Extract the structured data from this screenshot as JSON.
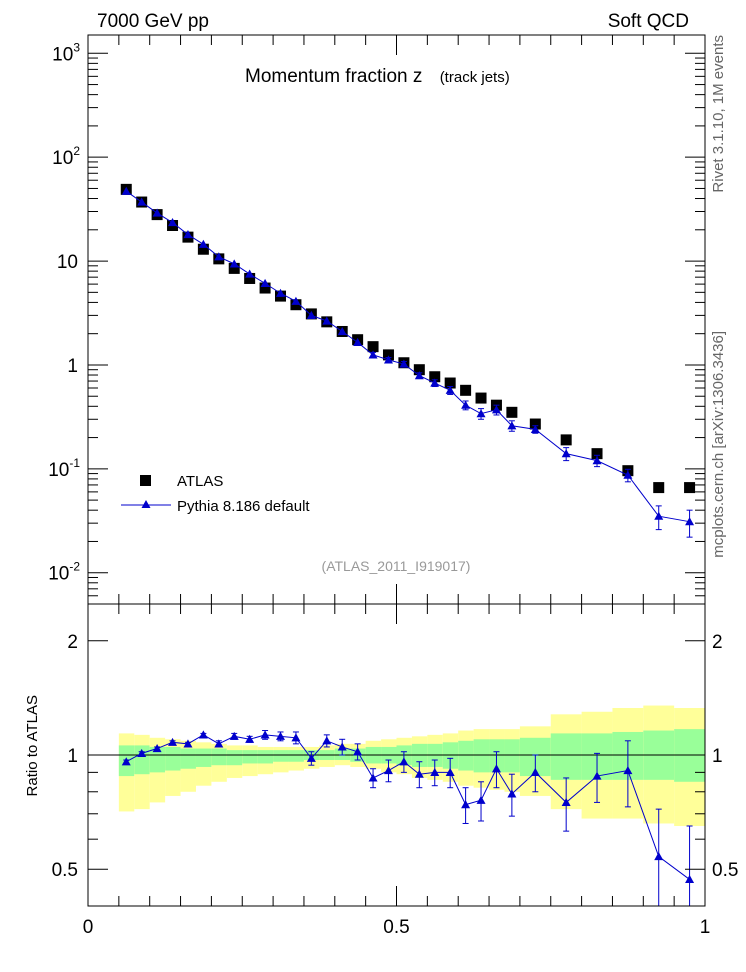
{
  "header": {
    "energy_label": "7000 GeV pp",
    "process_label": "Soft QCD"
  },
  "plot": {
    "title": "Momentum fraction z",
    "subtitle": "(track jets)",
    "analysis_tag": "(ATLAS_2011_I919017)",
    "side_label_top": "Rivet 3.1.10,  1M events",
    "side_label_bottom": "mcplots.cern.ch [arXiv:1306.3436]",
    "ratio_ylabel": "Ratio to ATLAS"
  },
  "colors": {
    "data": "#000000",
    "mc": "#0000cc",
    "band_inner": "#99ff99",
    "band_outer": "#ffff99"
  },
  "chart_data": [
    {
      "type": "scatter",
      "name": "main",
      "x_scale": "linear",
      "y_scale": "log",
      "xlim": [
        0,
        1
      ],
      "ylim": [
        0.005,
        1500
      ],
      "y_tick_labels": [
        "10^-2",
        "10^-1",
        "1",
        "10",
        "10^2",
        "10^3"
      ],
      "legend": [
        "ATLAS",
        "Pythia 8.186 default"
      ],
      "legend_placement": "bottom-left",
      "series": [
        {
          "name": "ATLAS",
          "marker": "square",
          "x": [
            0.062,
            0.087,
            0.112,
            0.137,
            0.162,
            0.187,
            0.212,
            0.237,
            0.262,
            0.287,
            0.312,
            0.337,
            0.362,
            0.387,
            0.412,
            0.437,
            0.462,
            0.487,
            0.512,
            0.537,
            0.562,
            0.587,
            0.612,
            0.637,
            0.662,
            0.687,
            0.725,
            0.775,
            0.825,
            0.875,
            0.925,
            0.975
          ],
          "y": [
            49,
            37,
            28,
            22,
            17,
            13,
            10.5,
            8.5,
            6.8,
            5.5,
            4.6,
            3.8,
            3.1,
            2.6,
            2.1,
            1.75,
            1.5,
            1.25,
            1.05,
            0.9,
            0.77,
            0.67,
            0.57,
            0.48,
            0.41,
            0.35,
            0.27,
            0.19,
            0.14,
            0.096,
            0.066,
            0.066
          ]
        },
        {
          "name": "Pythia 8.186 default",
          "marker": "triangle",
          "x": [
            0.062,
            0.087,
            0.112,
            0.137,
            0.162,
            0.187,
            0.212,
            0.237,
            0.262,
            0.287,
            0.312,
            0.337,
            0.362,
            0.387,
            0.412,
            0.437,
            0.462,
            0.487,
            0.512,
            0.537,
            0.562,
            0.587,
            0.612,
            0.637,
            0.662,
            0.687,
            0.725,
            0.775,
            0.825,
            0.875,
            0.925,
            0.975
          ],
          "y": [
            47,
            37,
            29,
            23.5,
            18,
            14.5,
            11,
            9.4,
            7.5,
            6.1,
            4.9,
            4.1,
            3.0,
            2.65,
            2.1,
            1.65,
            1.25,
            1.12,
            1.02,
            0.79,
            0.67,
            0.57,
            0.41,
            0.34,
            0.37,
            0.26,
            0.24,
            0.14,
            0.12,
            0.087,
            0.035,
            0.031
          ],
          "y_err": [
            0,
            0,
            0,
            0,
            0,
            0,
            0,
            0,
            0,
            0,
            0,
            0,
            0,
            0,
            0,
            0,
            0.07,
            0.06,
            0.06,
            0.05,
            0.05,
            0.05,
            0.04,
            0.04,
            0.04,
            0.03,
            0.02,
            0.02,
            0.015,
            0.012,
            0.009,
            0.009
          ]
        }
      ]
    },
    {
      "type": "scatter",
      "name": "ratio",
      "x_scale": "linear",
      "y_scale": "log",
      "xlim": [
        0,
        1
      ],
      "ylim": [
        0.4,
        2.5
      ],
      "x_tick_labels": [
        "0",
        "0.5",
        "1"
      ],
      "y_tick_labels": [
        "0.5",
        "1",
        "2"
      ],
      "ylabel": "Ratio to ATLAS",
      "bands": {
        "x_edges": [
          0.05,
          0.075,
          0.1,
          0.125,
          0.15,
          0.175,
          0.2,
          0.225,
          0.25,
          0.275,
          0.3,
          0.325,
          0.35,
          0.375,
          0.4,
          0.425,
          0.45,
          0.475,
          0.5,
          0.525,
          0.55,
          0.575,
          0.6,
          0.625,
          0.65,
          0.675,
          0.7,
          0.75,
          0.8,
          0.85,
          0.9,
          0.95,
          1.0
        ],
        "inner_low": [
          0.88,
          0.89,
          0.9,
          0.91,
          0.92,
          0.93,
          0.94,
          0.94,
          0.95,
          0.95,
          0.96,
          0.96,
          0.97,
          0.97,
          0.97,
          0.96,
          0.95,
          0.95,
          0.94,
          0.93,
          0.93,
          0.92,
          0.91,
          0.9,
          0.9,
          0.9,
          0.88,
          0.86,
          0.86,
          0.86,
          0.86,
          0.85
        ],
        "inner_high": [
          1.06,
          1.06,
          1.05,
          1.05,
          1.04,
          1.04,
          1.04,
          1.03,
          1.03,
          1.03,
          1.03,
          1.03,
          1.03,
          1.03,
          1.04,
          1.04,
          1.05,
          1.05,
          1.06,
          1.07,
          1.07,
          1.08,
          1.09,
          1.1,
          1.1,
          1.1,
          1.11,
          1.14,
          1.14,
          1.15,
          1.16,
          1.17
        ],
        "outer_low": [
          0.71,
          0.72,
          0.75,
          0.78,
          0.8,
          0.83,
          0.85,
          0.87,
          0.88,
          0.89,
          0.9,
          0.91,
          0.92,
          0.93,
          0.94,
          0.93,
          0.92,
          0.9,
          0.89,
          0.87,
          0.86,
          0.85,
          0.83,
          0.82,
          0.81,
          0.8,
          0.78,
          0.72,
          0.68,
          0.68,
          0.66,
          0.65
        ],
        "outer_high": [
          1.14,
          1.13,
          1.11,
          1.1,
          1.09,
          1.08,
          1.07,
          1.06,
          1.06,
          1.05,
          1.05,
          1.05,
          1.05,
          1.06,
          1.07,
          1.07,
          1.09,
          1.1,
          1.11,
          1.12,
          1.13,
          1.14,
          1.16,
          1.17,
          1.17,
          1.17,
          1.19,
          1.28,
          1.3,
          1.33,
          1.35,
          1.33
        ]
      },
      "series": [
        {
          "name": "Pythia 8.186 default",
          "marker": "triangle",
          "x": [
            0.062,
            0.087,
            0.112,
            0.137,
            0.162,
            0.187,
            0.212,
            0.237,
            0.262,
            0.287,
            0.312,
            0.337,
            0.362,
            0.387,
            0.412,
            0.437,
            0.462,
            0.487,
            0.512,
            0.537,
            0.562,
            0.587,
            0.612,
            0.637,
            0.662,
            0.687,
            0.725,
            0.775,
            0.825,
            0.875,
            0.925,
            0.975
          ],
          "y": [
            0.96,
            1.01,
            1.04,
            1.08,
            1.07,
            1.13,
            1.07,
            1.12,
            1.1,
            1.13,
            1.12,
            1.11,
            0.98,
            1.09,
            1.05,
            1.02,
            0.87,
            0.91,
            0.96,
            0.89,
            0.9,
            0.9,
            0.74,
            0.76,
            0.92,
            0.79,
            0.9,
            0.75,
            0.88,
            0.91,
            0.54,
            0.47
          ],
          "y_err": [
            0.01,
            0.01,
            0.01,
            0.01,
            0.01,
            0.01,
            0.02,
            0.02,
            0.02,
            0.03,
            0.03,
            0.04,
            0.04,
            0.04,
            0.05,
            0.05,
            0.05,
            0.06,
            0.06,
            0.07,
            0.07,
            0.08,
            0.08,
            0.09,
            0.1,
            0.1,
            0.1,
            0.12,
            0.13,
            0.18,
            0.18,
            0.18
          ]
        }
      ]
    }
  ]
}
